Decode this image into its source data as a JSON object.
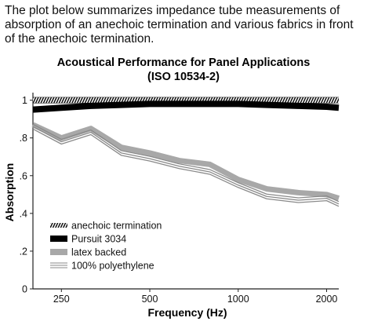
{
  "intro_text": "The plot below summarizes impedance tube measurements of absorption of an anechoic termination and various fabrics in front of the anechoic termination.",
  "chart_data": {
    "type": "line",
    "title": "Acoustical Performance for Panel Applications",
    "subtitle": "(ISO 10534-2)",
    "xlabel": "Frequency (Hz)",
    "ylabel": "Absorption",
    "x_scale": "log",
    "xlim": [
      200,
      2200
    ],
    "ylim": [
      0,
      1.04
    ],
    "x_ticks": [
      250,
      500,
      1000,
      2000
    ],
    "x_tick_labels": [
      "250",
      "500",
      "1000",
      "2000"
    ],
    "y_ticks": [
      0,
      0.2,
      0.4,
      0.6,
      0.8,
      1
    ],
    "y_tick_labels": [
      "0",
      ".2",
      ".4",
      ".6",
      ".8",
      "1"
    ],
    "grid": false,
    "legend_position": "bottom-left",
    "series": [
      {
        "name": "anechoic termination",
        "style": "hatched",
        "x": [
          200,
          250,
          315,
          400,
          500,
          630,
          800,
          1000,
          1250,
          1600,
          2000,
          2200
        ],
        "y": [
          1.0,
          1.0,
          1.0,
          1.0,
          1.0,
          1.0,
          1.0,
          1.0,
          1.0,
          1.0,
          1.0,
          1.0
        ]
      },
      {
        "name": "Pursuit 3034",
        "style": "thick-black",
        "x": [
          200,
          250,
          315,
          400,
          500,
          630,
          800,
          1000,
          1250,
          1600,
          2000,
          2200
        ],
        "y": [
          0.95,
          0.96,
          0.97,
          0.975,
          0.98,
          0.98,
          0.98,
          0.98,
          0.975,
          0.97,
          0.965,
          0.96
        ]
      },
      {
        "name": "latex backed",
        "style": "thick-gray",
        "x": [
          200,
          250,
          315,
          400,
          500,
          630,
          800,
          1000,
          1250,
          1600,
          2000,
          2200
        ],
        "y": [
          0.87,
          0.8,
          0.85,
          0.75,
          0.72,
          0.68,
          0.66,
          0.58,
          0.53,
          0.51,
          0.5,
          0.48
        ]
      },
      {
        "name": "100% polyethylene",
        "style": "triple-line",
        "x": [
          200,
          250,
          315,
          400,
          500,
          630,
          800,
          1000,
          1250,
          1600,
          2000,
          2200
        ],
        "y": [
          0.86,
          0.78,
          0.83,
          0.72,
          0.69,
          0.65,
          0.62,
          0.55,
          0.49,
          0.47,
          0.48,
          0.45
        ]
      }
    ]
  }
}
